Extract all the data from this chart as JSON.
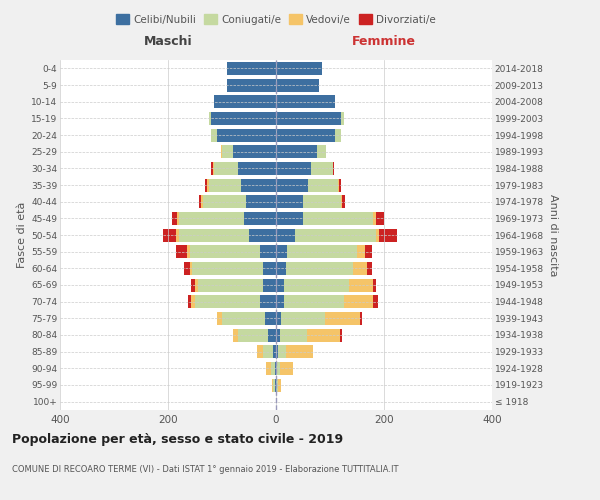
{
  "age_groups": [
    "100+",
    "95-99",
    "90-94",
    "85-89",
    "80-84",
    "75-79",
    "70-74",
    "65-69",
    "60-64",
    "55-59",
    "50-54",
    "45-49",
    "40-44",
    "35-39",
    "30-34",
    "25-29",
    "20-24",
    "15-19",
    "10-14",
    "5-9",
    "0-4"
  ],
  "birth_years": [
    "≤ 1918",
    "1919-1923",
    "1924-1928",
    "1929-1933",
    "1934-1938",
    "1939-1943",
    "1944-1948",
    "1949-1953",
    "1954-1958",
    "1959-1963",
    "1964-1968",
    "1969-1973",
    "1974-1978",
    "1979-1983",
    "1984-1988",
    "1989-1993",
    "1994-1998",
    "1999-2003",
    "2004-2008",
    "2009-2013",
    "2014-2018"
  ],
  "male": {
    "celibi": [
      0,
      2,
      2,
      5,
      15,
      20,
      30,
      25,
      25,
      30,
      50,
      60,
      55,
      65,
      70,
      80,
      110,
      120,
      115,
      90,
      90
    ],
    "coniugati": [
      0,
      3,
      8,
      20,
      55,
      80,
      120,
      120,
      130,
      130,
      130,
      120,
      80,
      60,
      45,
      20,
      10,
      5,
      0,
      0,
      0
    ],
    "vedovi": [
      0,
      2,
      8,
      10,
      10,
      10,
      8,
      5,
      5,
      5,
      5,
      3,
      3,
      2,
      2,
      2,
      0,
      0,
      0,
      0,
      0
    ],
    "divorziati": [
      0,
      0,
      0,
      0,
      0,
      0,
      5,
      8,
      10,
      20,
      25,
      10,
      5,
      5,
      3,
      0,
      0,
      0,
      0,
      0,
      0
    ]
  },
  "female": {
    "nubili": [
      0,
      2,
      2,
      3,
      8,
      10,
      15,
      15,
      18,
      20,
      35,
      50,
      50,
      60,
      65,
      75,
      110,
      120,
      110,
      80,
      85
    ],
    "coniugate": [
      0,
      2,
      5,
      15,
      50,
      80,
      110,
      120,
      125,
      130,
      150,
      130,
      70,
      55,
      40,
      18,
      10,
      5,
      0,
      0,
      0
    ],
    "vedove": [
      0,
      5,
      25,
      50,
      60,
      65,
      55,
      45,
      25,
      15,
      5,
      5,
      2,
      2,
      0,
      0,
      0,
      0,
      0,
      0,
      0
    ],
    "divorziate": [
      0,
      0,
      0,
      0,
      5,
      5,
      8,
      5,
      10,
      12,
      35,
      15,
      5,
      3,
      2,
      0,
      0,
      0,
      0,
      0,
      0
    ]
  },
  "colors": {
    "celibi": "#3d6fa0",
    "coniugati": "#c5d9a0",
    "vedovi": "#f5c468",
    "divorziati": "#cc2222"
  },
  "title": "Popolazione per età, sesso e stato civile - 2019",
  "subtitle": "COMUNE DI RECOARO TERME (VI) - Dati ISTAT 1° gennaio 2019 - Elaborazione TUTTITALIA.IT",
  "ylabel_left": "Fasce di età",
  "ylabel_right": "Anni di nascita",
  "xlabel_left": "Maschi",
  "xlabel_right": "Femmine",
  "xlim": 400,
  "bg_color": "#f0f0f0",
  "plot_bg": "#ffffff"
}
